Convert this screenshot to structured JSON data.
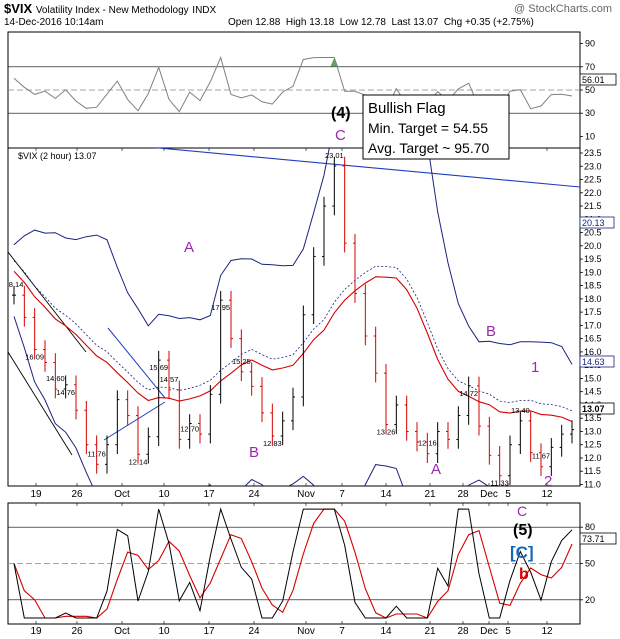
{
  "header": {
    "symbol": "$VIX",
    "name": "Volatility Index - New Methodology",
    "exchange": "INDX",
    "watermark": "@ StockCharts.com",
    "datetime": "14-Dec-2016 10:14am",
    "open_label": "Open",
    "open": "12.88",
    "high_label": "High",
    "high": "13.18",
    "low_label": "Low",
    "low": "12.78",
    "last_label": "Last",
    "last": "13.07",
    "chg_label": "Chg",
    "chg": "+0.35 (+2.75%)"
  },
  "rsi_top": {
    "current": "56.01",
    "ticks": [
      "90",
      "70",
      "50",
      "30",
      "10"
    ]
  },
  "price_panel": {
    "legend": "$VIX (2 hour) 13.07",
    "ticks": [
      "23.5",
      "23.0",
      "22.5",
      "22.0",
      "21.5",
      "21.0",
      "20.5",
      "20.0",
      "19.5",
      "19.0",
      "18.5",
      "18.0",
      "17.5",
      "17.0",
      "16.5",
      "16.0",
      "15.5",
      "15.0",
      "14.5",
      "14.0",
      "13.5",
      "13.0",
      "12.5",
      "12.0",
      "11.5",
      "11.0"
    ],
    "tags": [
      {
        "label": "20.13",
        "color": "#1a237e"
      },
      {
        "label": "14.63",
        "color": "#1a237e"
      },
      {
        "label": "13.07",
        "color": "#000000"
      }
    ],
    "annotation": {
      "line1": "Bullish Flag",
      "line2": "Min. Target = 54.55",
      "line3": "Avg. Target ~ 95.70"
    },
    "wave_labels": [
      {
        "text": "(4)",
        "color": "#000000",
        "weight": "bold"
      },
      {
        "text": "C",
        "color": "#9c27b0",
        "weight": "normal"
      },
      {
        "text": "A",
        "color": "#9c27b0",
        "weight": "normal"
      },
      {
        "text": "B",
        "color": "#9c27b0",
        "weight": "normal"
      },
      {
        "text": "B",
        "color": "#9c27b0",
        "weight": "normal"
      },
      {
        "text": "A",
        "color": "#9c27b0",
        "weight": "normal"
      },
      {
        "text": "1",
        "color": "#9c27b0",
        "weight": "normal"
      },
      {
        "text": "2",
        "color": "#9c27b0",
        "weight": "normal"
      }
    ],
    "price_labels": [
      "18.14",
      "16.09",
      "14.60",
      "14.76",
      "11.76",
      "15.69",
      "14.57",
      "12.14",
      "12.70",
      "17.95",
      "15.25",
      "12.83",
      "23.01",
      "13.26",
      "12.16",
      "14.72",
      "13.40",
      "11.33",
      "11.67"
    ]
  },
  "bottom_panel": {
    "current": "73.71",
    "ticks": [
      "80",
      "50",
      "20"
    ],
    "wave_labels": [
      {
        "text": "C",
        "color": "#9c27b0"
      },
      {
        "text": "(5)",
        "color": "#000000"
      },
      {
        "text": "[C]",
        "color": "#1565c0"
      },
      {
        "text": "b",
        "color": "#d50000"
      }
    ]
  },
  "x_axis": {
    "labels": [
      "19",
      "26",
      "Oct",
      "10",
      "17",
      "24",
      "Nov",
      "7",
      "14",
      "21",
      "28",
      "Dec",
      "5",
      "12"
    ]
  },
  "colors": {
    "up": "#000000",
    "down": "#d50000",
    "bb": "#1a237e",
    "ma": "#d50000",
    "trend": "#1f3fbf",
    "rsi": "#808080",
    "stoch_k": "#000000",
    "stoch_d": "#d50000",
    "purple": "#9c27b0"
  },
  "chart_data": {
    "type": "line",
    "title": "$VIX Volatility Index - New Methodology INDX",
    "xlabel": "",
    "ylabel": "",
    "ylim": [
      11.0,
      23.5
    ],
    "x_labels": [
      "19",
      "26",
      "Oct",
      "10",
      "17",
      "24",
      "Nov",
      "7",
      "14",
      "21",
      "28",
      "Dec",
      "5",
      "12"
    ],
    "series": [
      {
        "name": "$VIX (2 hour)",
        "values": [
          18.14,
          17.3,
          16.09,
          15.6,
          14.6,
          14.76,
          13.8,
          12.5,
          11.76,
          12.5,
          14.2,
          13.6,
          12.14,
          12.8,
          15.69,
          14.57,
          12.7,
          13.3,
          12.9,
          14.4,
          17.95,
          16.5,
          15.25,
          14.7,
          13.7,
          12.83,
          13.4,
          14.3,
          17.4,
          19.6,
          21.5,
          23.01,
          20.1,
          18.2,
          16.6,
          15.2,
          13.26,
          14.0,
          13.0,
          12.6,
          12.16,
          13.0,
          12.7,
          13.6,
          14.72,
          13.2,
          12.1,
          11.33,
          12.5,
          13.4,
          12.2,
          11.67,
          12.4,
          12.9,
          13.07
        ]
      }
    ],
    "annotations": [
      "Bullish Flag",
      "Min. Target = 54.55",
      "Avg. Target ~ 95.70"
    ],
    "price_labels": [
      18.14,
      16.09,
      14.6,
      14.76,
      11.76,
      15.69,
      14.57,
      12.14,
      12.7,
      17.95,
      15.25,
      12.83,
      23.01,
      13.26,
      12.16,
      14.72,
      13.4,
      11.33,
      11.67
    ],
    "rsi_top_current": 56.01,
    "bottom_osc_current": 73.71
  }
}
